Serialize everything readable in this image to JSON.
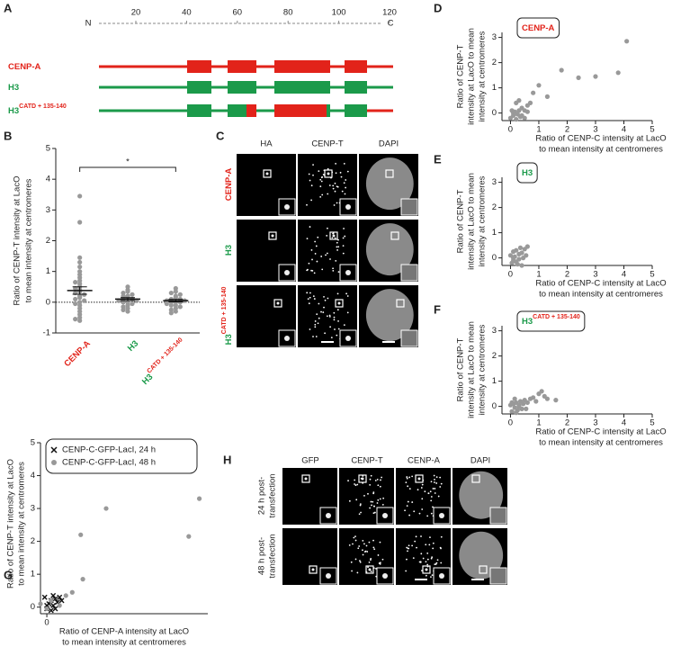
{
  "figure": {
    "panel_labels": [
      "A",
      "B",
      "C",
      "D",
      "E",
      "F",
      "G",
      "H"
    ],
    "A": {
      "n_label": "N",
      "c_label": "C",
      "ruler_ticks": [
        20,
        40,
        60,
        80,
        100,
        120
      ],
      "rows": [
        "CENP-A",
        "H3",
        "H3"
      ],
      "row_superscripts": [
        null,
        null,
        "CATD + 135-140"
      ],
      "row_colors": [
        "#e2231a",
        "#1b9a4a",
        "#1b9a4a"
      ],
      "superscript_color": "#e2231a"
    },
    "C": {
      "columns": [
        "HA",
        "CENP-T",
        "DAPI"
      ],
      "rows": [
        "CENP-A",
        "H3",
        "H3"
      ],
      "row_superscripts": [
        null,
        null,
        "CATD + 135-140"
      ],
      "row_colors": [
        "#e2231a",
        "#1b9a4a",
        "#1b9a4a"
      ],
      "superscript_color": "#e2231a"
    },
    "H": {
      "columns": [
        "GFP",
        "CENP-T",
        "CENP-A",
        "DAPI"
      ],
      "rows": [
        [
          "24 h post-",
          "transfection"
        ],
        [
          "48 h post-",
          "transfection"
        ]
      ]
    }
  },
  "chart_data": [
    {
      "type": "strip",
      "ylabel": [
        "Ratio of CENP-T intensity at LacO",
        "to mean intensity at centromeres"
      ],
      "categories": [
        "CENP-A",
        "H3",
        "H3"
      ],
      "category_superscripts": [
        null,
        null,
        "CATD + 135-140"
      ],
      "category_colors": [
        "#e2231a",
        "#1b9a4a",
        "#1b9a4a"
      ],
      "superscript_color": "#e2231a",
      "point_color": "#999999",
      "points": [
        [
          3.45,
          2.6,
          1.45,
          1.3,
          1.15,
          1.0,
          0.9,
          0.8,
          0.7,
          0.65,
          0.6,
          0.5,
          0.45,
          0.4,
          0.35,
          0.3,
          0.25,
          0.2,
          0.15,
          0.1,
          0.05,
          0,
          -0.05,
          -0.1,
          -0.2,
          -0.3,
          -0.4,
          -0.5,
          -0.55,
          -0.6
        ],
        [
          0.5,
          0.4,
          0.35,
          0.3,
          0.25,
          0.2,
          0.2,
          0.15,
          0.1,
          0.1,
          0.05,
          0.05,
          0,
          0,
          -0.05,
          -0.1,
          -0.15,
          -0.2,
          -0.25,
          -0.3
        ],
        [
          0.45,
          0.35,
          0.3,
          0.25,
          0.2,
          0.15,
          0.1,
          0.1,
          0.05,
          0.05,
          0,
          0,
          0,
          -0.05,
          -0.1,
          -0.1,
          -0.15,
          -0.2,
          -0.25,
          -0.3,
          -0.35
        ]
      ],
      "means": [
        0.38,
        0.1,
        0.05
      ],
      "sem": [
        0.12,
        0.05,
        0.04
      ],
      "significance_label": "*",
      "ylim": [
        -1,
        5
      ],
      "yticks": [
        -1,
        0,
        1,
        2,
        3,
        4,
        5
      ]
    },
    {
      "type": "scatter",
      "title": "CENP-A",
      "title_color": "#e2231a",
      "xlabel": [
        "Ratio of CENP-C intensity at LacO",
        "to mean intensity at centromeres"
      ],
      "ylabel": [
        "Ratio of CENP-T",
        "intensity at LacO to mean",
        "intensity at centromeres"
      ],
      "xlim": [
        -0.3,
        5
      ],
      "xticks": [
        0,
        1,
        2,
        3,
        4,
        5
      ],
      "ylim": [
        -0.3,
        3.2
      ],
      "yticks": [
        0,
        1,
        2,
        3
      ],
      "series": [
        {
          "color": "#999999",
          "marker": "circle",
          "x": [
            0,
            0.05,
            0.1,
            0.1,
            0.15,
            0.2,
            0.2,
            0.25,
            0.3,
            0.3,
            0.35,
            0.4,
            0.4,
            0.5,
            0.5,
            0.6,
            0.6,
            0.7,
            0.8,
            1.0,
            1.3,
            1.8,
            2.4,
            3.0,
            3.8,
            4.1
          ],
          "y": [
            -0.2,
            0.1,
            0,
            -0.1,
            0.05,
            0.4,
            -0.25,
            -0.05,
            0.5,
            0.1,
            -0.15,
            0.2,
            -0.1,
            0.1,
            -0.2,
            0.3,
            0.05,
            0.4,
            0.8,
            1.1,
            0.65,
            1.7,
            1.4,
            1.45,
            1.6,
            2.85
          ]
        }
      ]
    },
    {
      "type": "scatter",
      "title": "H3",
      "title_color": "#1b9a4a",
      "xlabel": [
        "Ratio of CENP-C intensity at LacO",
        "to mean intensity at centromeres"
      ],
      "ylabel": [
        "Ratio of CENP-T",
        "intensity at LacO to mean",
        "intensity at centromeres"
      ],
      "xlim": [
        -0.3,
        5
      ],
      "xticks": [
        0,
        1,
        2,
        3,
        4,
        5
      ],
      "ylim": [
        -0.3,
        3.2
      ],
      "yticks": [
        0,
        1,
        2,
        3
      ],
      "series": [
        {
          "color": "#999999",
          "marker": "circle",
          "x": [
            0,
            0.05,
            0.1,
            0.1,
            0.15,
            0.2,
            0.25,
            0.3,
            0.3,
            0.35,
            0.4,
            0.45,
            0.5,
            0.55,
            0.6,
            0.2,
            0.1,
            0.4
          ],
          "y": [
            0.1,
            -0.2,
            0.25,
            -0.1,
            0.05,
            0.3,
            -0.25,
            0.15,
            -0.05,
            0.4,
            0.2,
            0,
            0.35,
            0.1,
            0.45,
            -0.15,
            0,
            -0.3
          ]
        }
      ]
    },
    {
      "type": "scatter",
      "title": "H3",
      "title_superscript": "CATD + 135-140",
      "title_color": "#1b9a4a",
      "superscript_color": "#e2231a",
      "xlabel": [
        "Ratio of CENP-C intensity at LacO",
        "to mean intensity at centromeres"
      ],
      "ylabel": [
        "Ratio of CENP-T",
        "intensity at LacO to mean",
        "intensity at centromeres"
      ],
      "xlim": [
        -0.3,
        5
      ],
      "xticks": [
        0,
        1,
        2,
        3,
        4,
        5
      ],
      "ylim": [
        -0.3,
        3.2
      ],
      "yticks": [
        0,
        1,
        2,
        3
      ],
      "series": [
        {
          "color": "#999999",
          "marker": "circle",
          "x": [
            0,
            0.05,
            0.1,
            0.15,
            0.2,
            0.25,
            0.3,
            0.35,
            0.4,
            0.5,
            0.6,
            0.7,
            0.8,
            0.9,
            1.0,
            1.1,
            1.2,
            1.3,
            1.6,
            0.2,
            0.3,
            0.15,
            0.45,
            0.55,
            0.05
          ],
          "y": [
            0.05,
            -0.2,
            0.1,
            -0.05,
            0.15,
            -0.15,
            0.05,
            0.2,
            -0.1,
            0.25,
            0.15,
            0.3,
            0.35,
            0.2,
            0.5,
            0.6,
            0.4,
            0.3,
            0.25,
            -0.25,
            0,
            0.3,
            0.1,
            -0.1,
            0.15
          ]
        }
      ]
    },
    {
      "type": "scatter",
      "xlabel": [
        "Ratio of CENP-A intensity at LacO",
        "to mean intensity at centromeres"
      ],
      "ylabel": [
        "Ratio of CENP-T intensity at LacO",
        "to mean intensity at centromeres"
      ],
      "xlim": [
        -0.15,
        3.8
      ],
      "xticks": [
        0
      ],
      "ylim": [
        -0.2,
        5
      ],
      "yticks": [
        0,
        1,
        2,
        3,
        4,
        5
      ],
      "legend": "upper-left",
      "series": [
        {
          "name": "CENP-C-GFP-LacI, 24 h",
          "color": "#111111",
          "marker": "x",
          "x": [
            -0.05,
            0,
            0.05,
            0.1,
            0.15,
            0.2,
            0.25,
            0.3,
            0.35,
            0.1,
            0.2,
            0,
            0.15
          ],
          "y": [
            0.3,
            -0.05,
            0.1,
            0.2,
            0.05,
            0.25,
            0.15,
            0.3,
            0.2,
            -0.1,
            -0.05,
            0.05,
            0.35
          ]
        },
        {
          "name": "CENP-C-GFP-LacI, 48 h",
          "color": "#999999",
          "marker": "circle",
          "x": [
            -0.15,
            0,
            0.1,
            0.3,
            0.45,
            0.6,
            0.8,
            0.85,
            1.4,
            3.35,
            3.6
          ],
          "y": [
            0.1,
            -0.05,
            0.2,
            0.05,
            0.35,
            0.45,
            2.2,
            0.85,
            3.0,
            2.15,
            3.3
          ]
        }
      ]
    }
  ]
}
